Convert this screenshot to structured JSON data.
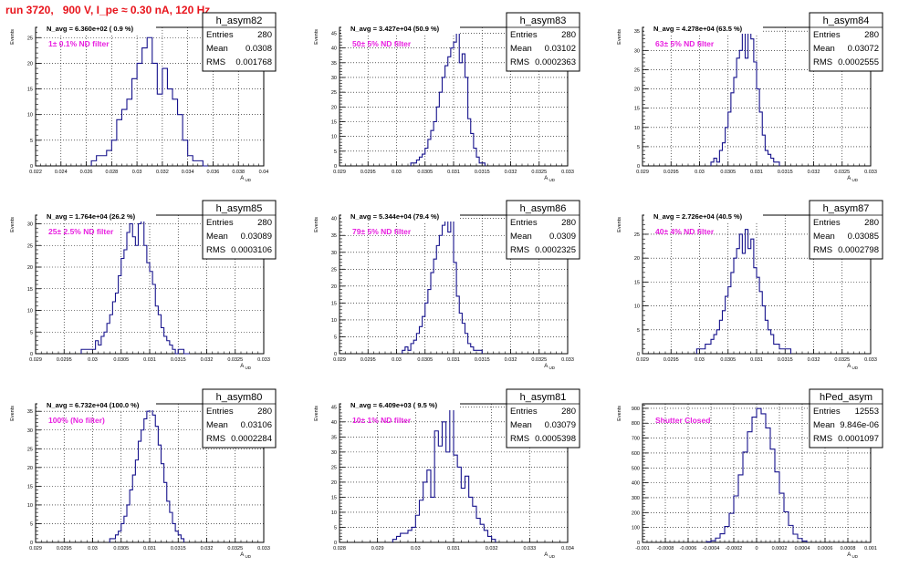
{
  "canvas_title": "run 3720,   900 V, I_pe ≈ 0.30 nA, 120 Hz",
  "colors": {
    "histogram": "#16128c",
    "filter_text": "#e820e0",
    "title_text": "#e8141c"
  },
  "chart_data": [
    {
      "type": "histogram",
      "hist_name": "h_asym82",
      "nav": "N_avg = 6.360e+02 ( 0.9 %)",
      "filter": "1± 0.1% ND filter",
      "entries": "280",
      "mean": "0.0308",
      "rms": "0.001768",
      "xlabel": "A_UD",
      "ylabel": "Events",
      "xlim": [
        0.022,
        0.04
      ],
      "ylim": [
        0,
        27
      ],
      "xticks": [
        "0.022",
        "0.024",
        "0.026",
        "0.028",
        "0.03",
        "0.032",
        "0.034",
        "0.036",
        "0.038",
        "0.04"
      ],
      "yticks": [
        "0",
        "5",
        "10",
        "15",
        "20",
        "25"
      ],
      "bin_edges": [
        0.0264,
        0.0268,
        0.0272,
        0.0276,
        0.028,
        0.0284,
        0.0288,
        0.0292,
        0.0296,
        0.03,
        0.0304,
        0.0308,
        0.0312,
        0.0316,
        0.032,
        0.0324,
        0.0328,
        0.0332,
        0.0336,
        0.034,
        0.0344,
        0.0348,
        0.0352,
        0.0356
      ],
      "counts": [
        1,
        2,
        2,
        3,
        5,
        9,
        11,
        13,
        17,
        20,
        23,
        25,
        20,
        14,
        19,
        15,
        13,
        10,
        5,
        2,
        1,
        1,
        0
      ]
    },
    {
      "type": "histogram",
      "hist_name": "h_asym83",
      "nav": "N_avg = 3.427e+04 (50.9 %)",
      "filter": "50± 5% ND filter",
      "entries": "280",
      "mean": "0.03102",
      "rms": "0.0002363",
      "xlabel": "A_UD",
      "ylabel": "Events",
      "xlim": [
        0.029,
        0.033
      ],
      "ylim": [
        0,
        47
      ],
      "xticks": [
        "0.029",
        "0.0295",
        "0.03",
        "0.0305",
        "0.031",
        "0.0315",
        "0.032",
        "0.0325",
        "0.033"
      ],
      "yticks": [
        "0",
        "5",
        "10",
        "15",
        "20",
        "25",
        "30",
        "35",
        "40",
        "45"
      ],
      "bin_edges": [
        0.03025,
        0.0303,
        0.03035,
        0.0304,
        0.03045,
        0.0305,
        0.03055,
        0.0306,
        0.03065,
        0.0307,
        0.03075,
        0.0308,
        0.03085,
        0.0309,
        0.03095,
        0.031,
        0.03105,
        0.0311,
        0.03115,
        0.0312,
        0.03125,
        0.0313,
        0.03135,
        0.0314,
        0.03145,
        0.0315,
        0.03155
      ],
      "counts": [
        1,
        1,
        2,
        3,
        4,
        6,
        9,
        12,
        15,
        20,
        25,
        30,
        34,
        37,
        40,
        42,
        45,
        35,
        38,
        30,
        16,
        11,
        6,
        3,
        1,
        1
      ]
    },
    {
      "type": "histogram",
      "hist_name": "h_asym84",
      "nav": "N_avg = 4.278e+04 (63.5 %)",
      "filter": "63± 5% ND filter",
      "entries": "280",
      "mean": "0.03072",
      "rms": "0.0002555",
      "xlabel": "A_UD",
      "ylabel": "Events",
      "xlim": [
        0.029,
        0.033
      ],
      "ylim": [
        0,
        36
      ],
      "xticks": [
        "0.029",
        "0.0295",
        "0.03",
        "0.0305",
        "0.031",
        "0.0315",
        "0.032",
        "0.0325",
        "0.033"
      ],
      "yticks": [
        "0",
        "5",
        "10",
        "15",
        "20",
        "25",
        "30",
        "35"
      ],
      "bin_edges": [
        0.0302,
        0.03025,
        0.0303,
        0.03035,
        0.0304,
        0.03045,
        0.0305,
        0.03055,
        0.0306,
        0.03065,
        0.0307,
        0.03075,
        0.0308,
        0.03085,
        0.0309,
        0.03095,
        0.031,
        0.03105,
        0.0311,
        0.03115,
        0.0312,
        0.03125,
        0.0313,
        0.03135,
        0.0314
      ],
      "counts": [
        1,
        2,
        1,
        4,
        6,
        10,
        14,
        19,
        23,
        28,
        30,
        36,
        28,
        36,
        33,
        27,
        20,
        14,
        8,
        4,
        3,
        2,
        1,
        1
      ]
    },
    {
      "type": "histogram",
      "hist_name": "h_asym85",
      "nav": "N_avg = 1.764e+04 (26.2 %)",
      "filter": "25± 2.5% ND filter",
      "entries": "280",
      "mean": "0.03089",
      "rms": "0.0003106",
      "xlabel": "A_UD",
      "ylabel": "Events",
      "xlim": [
        0.029,
        0.033
      ],
      "ylim": [
        0,
        32
      ],
      "xticks": [
        "0.029",
        "0.0295",
        "0.03",
        "0.0305",
        "0.031",
        "0.0315",
        "0.032",
        "0.0325",
        "0.033"
      ],
      "yticks": [
        "0",
        "5",
        "10",
        "15",
        "20",
        "25",
        "30"
      ],
      "bin_edges": [
        0.0298,
        0.02985,
        0.0299,
        0.02995,
        0.03,
        0.03005,
        0.0301,
        0.03015,
        0.0302,
        0.03025,
        0.0303,
        0.03035,
        0.0304,
        0.03045,
        0.0305,
        0.03055,
        0.0306,
        0.03065,
        0.0307,
        0.03075,
        0.0308,
        0.03085,
        0.0309,
        0.03095,
        0.031,
        0.03105,
        0.0311,
        0.03115,
        0.0312,
        0.03125,
        0.0313,
        0.03135,
        0.0314,
        0.03145,
        0.0315,
        0.03155,
        0.0316,
        0.03165,
        0.0317
      ],
      "counts": [
        1,
        1,
        1,
        1,
        1,
        3,
        2,
        4,
        5,
        7,
        9,
        12,
        14,
        18,
        22,
        24,
        28,
        30,
        27,
        25,
        30,
        31,
        25,
        21,
        19,
        16,
        11,
        9,
        6,
        4,
        3,
        2,
        1,
        0,
        1,
        1,
        0,
        0
      ]
    },
    {
      "type": "histogram",
      "hist_name": "h_asym86",
      "nav": "N_avg = 5.344e+04 (79.4 %)",
      "filter": "79± 5% ND filter",
      "entries": "280",
      "mean": "0.0309",
      "rms": "0.0002325",
      "xlabel": "A_UD",
      "ylabel": "Events",
      "xlim": [
        0.029,
        0.033
      ],
      "ylim": [
        0,
        41
      ],
      "xticks": [
        "0.029",
        "0.0295",
        "0.03",
        "0.0305",
        "0.031",
        "0.0315",
        "0.032",
        "0.0325",
        "0.033"
      ],
      "yticks": [
        "0",
        "5",
        "10",
        "15",
        "20",
        "25",
        "30",
        "35",
        "40"
      ],
      "bin_edges": [
        0.0301,
        0.03015,
        0.0302,
        0.03025,
        0.0303,
        0.03035,
        0.0304,
        0.03045,
        0.0305,
        0.03055,
        0.0306,
        0.03065,
        0.0307,
        0.03075,
        0.0308,
        0.03085,
        0.0309,
        0.03095,
        0.031,
        0.03105,
        0.0311,
        0.03115,
        0.0312,
        0.03125,
        0.0313,
        0.03135,
        0.0314,
        0.03145,
        0.0315
      ],
      "counts": [
        1,
        2,
        1,
        3,
        4,
        6,
        8,
        11,
        15,
        19,
        24,
        28,
        32,
        35,
        38,
        40,
        36,
        41,
        27,
        17,
        12,
        9,
        6,
        3,
        2,
        1,
        1,
        1
      ]
    },
    {
      "type": "histogram",
      "hist_name": "h_asym87",
      "nav": "N_avg = 2.726e+04 (40.5 %)",
      "filter": "40± 4% ND filter",
      "entries": "280",
      "mean": "0.03085",
      "rms": "0.0002798",
      "xlabel": "A_UD",
      "ylabel": "Events",
      "xlim": [
        0.029,
        0.033
      ],
      "ylim": [
        0,
        29
      ],
      "xticks": [
        "0.029",
        "0.0295",
        "0.03",
        "0.0305",
        "0.031",
        "0.0315",
        "0.032",
        "0.0325",
        "0.033"
      ],
      "yticks": [
        "0",
        "5",
        "10",
        "15",
        "20",
        "25"
      ],
      "bin_edges": [
        0.02995,
        0.03,
        0.03005,
        0.0301,
        0.03015,
        0.0302,
        0.03025,
        0.0303,
        0.03035,
        0.0304,
        0.03045,
        0.0305,
        0.03055,
        0.0306,
        0.03065,
        0.0307,
        0.03075,
        0.0308,
        0.03085,
        0.0309,
        0.03095,
        0.031,
        0.03105,
        0.0311,
        0.03115,
        0.0312,
        0.03125,
        0.0313,
        0.03135,
        0.0314,
        0.03145,
        0.0315,
        0.03155,
        0.0316
      ],
      "counts": [
        1,
        1,
        1,
        2,
        2,
        3,
        4,
        5,
        7,
        9,
        12,
        14,
        17,
        20,
        22,
        25,
        21,
        26,
        22,
        24,
        18,
        16,
        13,
        10,
        7,
        5,
        4,
        2,
        2,
        1,
        1,
        1,
        1
      ]
    },
    {
      "type": "histogram",
      "hist_name": "h_asym80",
      "nav": "N_avg = 6.732e+04 (100.0 %)",
      "filter": "100% (No filter)",
      "entries": "280",
      "mean": "0.03106",
      "rms": "0.0002284",
      "xlabel": "A_UD",
      "ylabel": "Events",
      "xlim": [
        0.029,
        0.033
      ],
      "ylim": [
        0,
        37
      ],
      "xticks": [
        "0.029",
        "0.0295",
        "0.03",
        "0.0305",
        "0.031",
        "0.0315",
        "0.032",
        "0.0325",
        "0.033"
      ],
      "yticks": [
        "0",
        "5",
        "10",
        "15",
        "20",
        "25",
        "30",
        "35"
      ],
      "bin_edges": [
        0.0303,
        0.03035,
        0.0304,
        0.03045,
        0.0305,
        0.03055,
        0.0306,
        0.03065,
        0.0307,
        0.03075,
        0.0308,
        0.03085,
        0.0309,
        0.03095,
        0.031,
        0.03105,
        0.0311,
        0.03115,
        0.0312,
        0.03125,
        0.0313,
        0.03135,
        0.0314,
        0.03145,
        0.0315,
        0.03155,
        0.0316
      ],
      "counts": [
        1,
        1,
        2,
        3,
        5,
        7,
        10,
        14,
        18,
        22,
        27,
        30,
        33,
        35,
        37,
        34,
        31,
        26,
        21,
        16,
        11,
        8,
        5,
        3,
        2,
        1
      ]
    },
    {
      "type": "histogram",
      "hist_name": "h_asym81",
      "nav": "N_avg = 6.409e+03 ( 9.5 %)",
      "filter": "10± 1% ND filter",
      "entries": "280",
      "mean": "0.03079",
      "rms": "0.0005398",
      "xlabel": "A_UD",
      "ylabel": "Events",
      "xlim": [
        0.028,
        0.034
      ],
      "ylim": [
        0,
        46
      ],
      "xticks": [
        "0.028",
        "0.029",
        "0.03",
        "0.031",
        "0.032",
        "0.033",
        "0.034"
      ],
      "yticks": [
        "0",
        "5",
        "10",
        "15",
        "20",
        "25",
        "30",
        "35",
        "40",
        "45"
      ],
      "bin_edges": [
        0.0294,
        0.0295,
        0.0296,
        0.0297,
        0.0298,
        0.0299,
        0.03,
        0.0301,
        0.0302,
        0.0303,
        0.0304,
        0.0305,
        0.0306,
        0.0307,
        0.0308,
        0.0309,
        0.031,
        0.0311,
        0.0312,
        0.0313,
        0.0314,
        0.0315,
        0.0316,
        0.0317,
        0.0318,
        0.0319,
        0.032,
        0.0321
      ],
      "counts": [
        1,
        2,
        3,
        3,
        4,
        5,
        9,
        14,
        20,
        24,
        15,
        37,
        32,
        40,
        30,
        46,
        29,
        25,
        18,
        22,
        15,
        12,
        8,
        6,
        4,
        2,
        1
      ]
    },
    {
      "type": "histogram",
      "hist_name": "hPed_asym",
      "nav": "",
      "filter": "Shutter Closed",
      "entries": "12553",
      "mean": "9.846e-06",
      "rms": "0.0001097",
      "xlabel": "A_UD",
      "ylabel": "Events",
      "xlim": [
        -0.001,
        0.001
      ],
      "ylim": [
        0,
        930
      ],
      "xticks": [
        "-0.001",
        "-0.0008",
        "-0.0006",
        "-0.0004",
        "-0.0002",
        "0",
        "0.0002",
        "0.0004",
        "0.0006",
        "0.0008",
        "0.001"
      ],
      "yticks": [
        "0",
        "100",
        "200",
        "300",
        "400",
        "500",
        "600",
        "700",
        "800",
        "900"
      ],
      "bin_edges": [
        -0.00044,
        -0.0004,
        -0.00036,
        -0.00032,
        -0.00028,
        -0.00024,
        -0.0002,
        -0.00016,
        -0.00012,
        -8e-05,
        -4e-05,
        0,
        4e-05,
        8e-05,
        0.00012,
        0.00016,
        0.0002,
        0.00024,
        0.00028,
        0.00032,
        0.00036,
        0.0004,
        0.00044
      ],
      "counts": [
        4,
        11,
        29,
        58,
        107,
        195,
        312,
        453,
        606,
        742,
        841,
        898,
        863,
        768,
        626,
        473,
        330,
        205,
        114,
        55,
        26,
        9
      ]
    }
  ]
}
